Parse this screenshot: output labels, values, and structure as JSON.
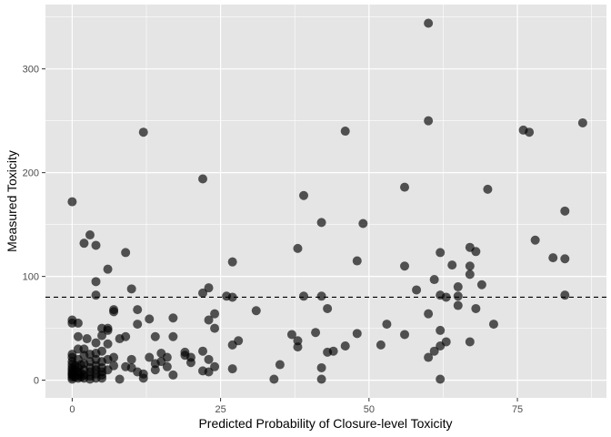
{
  "chart_data": {
    "type": "scatter",
    "title": "",
    "xlabel": "Predicted Probability of Closure-level Toxicity",
    "ylabel": "Measured Toxicity",
    "xlim": [
      -4.5,
      90
    ],
    "ylim": [
      -17,
      362
    ],
    "x_ticks": [
      0,
      25,
      50,
      75
    ],
    "y_ticks": [
      0,
      100,
      200,
      300
    ],
    "grid": true,
    "panel_background": "#e5e5e5",
    "grid_color": "#ffffff",
    "point_color": "#000000",
    "point_alpha": 0.65,
    "reference_line": {
      "y": 80,
      "style": "dashed"
    },
    "points": [
      [
        0,
        172
      ],
      [
        0,
        58
      ],
      [
        0,
        55
      ],
      [
        0,
        25
      ],
      [
        0,
        22
      ],
      [
        0,
        18
      ],
      [
        0,
        15
      ],
      [
        0,
        12
      ],
      [
        0,
        10
      ],
      [
        0,
        8
      ],
      [
        0,
        6
      ],
      [
        0,
        5
      ],
      [
        0,
        3
      ],
      [
        0,
        1
      ],
      [
        0.5,
        3
      ],
      [
        0.5,
        10
      ],
      [
        0.5,
        14
      ],
      [
        1,
        5
      ],
      [
        1,
        2
      ],
      [
        1,
        8
      ],
      [
        1,
        12
      ],
      [
        1,
        20
      ],
      [
        1,
        30
      ],
      [
        1,
        42
      ],
      [
        1,
        55
      ],
      [
        1.5,
        3
      ],
      [
        1.5,
        7
      ],
      [
        1.5,
        15
      ],
      [
        2,
        2
      ],
      [
        2,
        5
      ],
      [
        2,
        10
      ],
      [
        2,
        16
      ],
      [
        2,
        24
      ],
      [
        2,
        30
      ],
      [
        2,
        132
      ],
      [
        2.5,
        40
      ],
      [
        3,
        140
      ],
      [
        3,
        1
      ],
      [
        3,
        4
      ],
      [
        3,
        8
      ],
      [
        3,
        12
      ],
      [
        3,
        18
      ],
      [
        3,
        25
      ],
      [
        4,
        130
      ],
      [
        4,
        95
      ],
      [
        4,
        82
      ],
      [
        4,
        2
      ],
      [
        4,
        6
      ],
      [
        4,
        10
      ],
      [
        4,
        14
      ],
      [
        4,
        20
      ],
      [
        4,
        26
      ],
      [
        4,
        36
      ],
      [
        5,
        2
      ],
      [
        5,
        5
      ],
      [
        5,
        8
      ],
      [
        5,
        12
      ],
      [
        5,
        18
      ],
      [
        5,
        28
      ],
      [
        5,
        43
      ],
      [
        5,
        50
      ],
      [
        6,
        107
      ],
      [
        6,
        48
      ],
      [
        6,
        35
      ],
      [
        6,
        20
      ],
      [
        6,
        10
      ],
      [
        6,
        50
      ],
      [
        7,
        68
      ],
      [
        7,
        66
      ],
      [
        7,
        22
      ],
      [
        7,
        14
      ],
      [
        8,
        40
      ],
      [
        8,
        1
      ],
      [
        9,
        123
      ],
      [
        9,
        42
      ],
      [
        9,
        13
      ],
      [
        10,
        88
      ],
      [
        10,
        20
      ],
      [
        10,
        12
      ],
      [
        11,
        68
      ],
      [
        11,
        54
      ],
      [
        11,
        8
      ],
      [
        12,
        239
      ],
      [
        12,
        6
      ],
      [
        12,
        2
      ],
      [
        13,
        59
      ],
      [
        13,
        22
      ],
      [
        14,
        42
      ],
      [
        14,
        16
      ],
      [
        14,
        10
      ],
      [
        15,
        26
      ],
      [
        15,
        18
      ],
      [
        16,
        22
      ],
      [
        16,
        13
      ],
      [
        17,
        60
      ],
      [
        17,
        42
      ],
      [
        17,
        5
      ],
      [
        19,
        24
      ],
      [
        19,
        27
      ],
      [
        20,
        22
      ],
      [
        20,
        17
      ],
      [
        22,
        194
      ],
      [
        22,
        84
      ],
      [
        22,
        28
      ],
      [
        22,
        9
      ],
      [
        23,
        89
      ],
      [
        23,
        58
      ],
      [
        23,
        20
      ],
      [
        23,
        8
      ],
      [
        24,
        64
      ],
      [
        24,
        50
      ],
      [
        24,
        13
      ],
      [
        26,
        81
      ],
      [
        27,
        114
      ],
      [
        27,
        80
      ],
      [
        27,
        34
      ],
      [
        27,
        11
      ],
      [
        28,
        38
      ],
      [
        31,
        67
      ],
      [
        34,
        1
      ],
      [
        35,
        15
      ],
      [
        37,
        44
      ],
      [
        38,
        127
      ],
      [
        38,
        38
      ],
      [
        38,
        32
      ],
      [
        39,
        178
      ],
      [
        39,
        81
      ],
      [
        41,
        46
      ],
      [
        42,
        152
      ],
      [
        42,
        81
      ],
      [
        42,
        12
      ],
      [
        42,
        1
      ],
      [
        43,
        69
      ],
      [
        43,
        27
      ],
      [
        44,
        28
      ],
      [
        46,
        240
      ],
      [
        46,
        33
      ],
      [
        48,
        115
      ],
      [
        48,
        45
      ],
      [
        49,
        151
      ],
      [
        52,
        34
      ],
      [
        53,
        54
      ],
      [
        56,
        186
      ],
      [
        56,
        110
      ],
      [
        56,
        44
      ],
      [
        58,
        87
      ],
      [
        60,
        344
      ],
      [
        60,
        250
      ],
      [
        60,
        64
      ],
      [
        60,
        22
      ],
      [
        61,
        97
      ],
      [
        61,
        28
      ],
      [
        62,
        123
      ],
      [
        62,
        82
      ],
      [
        62,
        48
      ],
      [
        62,
        33
      ],
      [
        62,
        1
      ],
      [
        63,
        80
      ],
      [
        63,
        37
      ],
      [
        64,
        111
      ],
      [
        65,
        90
      ],
      [
        65,
        81
      ],
      [
        65,
        72
      ],
      [
        67,
        128
      ],
      [
        67,
        110
      ],
      [
        67,
        102
      ],
      [
        67,
        37
      ],
      [
        68,
        124
      ],
      [
        68,
        69
      ],
      [
        69,
        92
      ],
      [
        70,
        184
      ],
      [
        71,
        54
      ],
      [
        76,
        241
      ],
      [
        77,
        239
      ],
      [
        78,
        135
      ],
      [
        81,
        118
      ],
      [
        83,
        163
      ],
      [
        83,
        117
      ],
      [
        83,
        82
      ],
      [
        86,
        248
      ]
    ]
  }
}
